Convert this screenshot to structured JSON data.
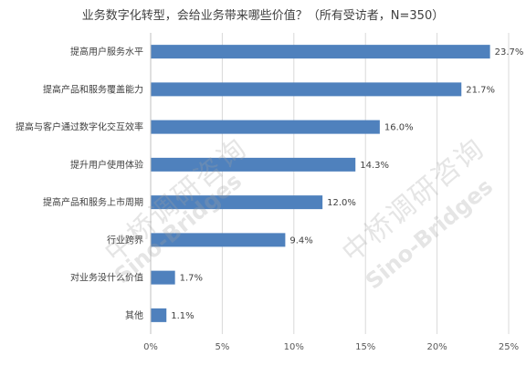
{
  "chart_data": {
    "type": "bar",
    "orientation": "horizontal",
    "title": "业务数字化转型，会给业务带来哪些价值？（所有受访者，N=350）",
    "categories": [
      "提高用户服务水平",
      "提高产品和服务覆盖能力",
      "提高与客户通过数字化交互效率",
      "提升用户使用体验",
      "提高产品和服务上市周期",
      "行业跨界",
      "对业务没什么价值",
      "其他"
    ],
    "values": [
      23.7,
      21.7,
      16.0,
      14.3,
      12.0,
      9.4,
      1.7,
      1.1
    ],
    "value_labels": [
      "23.7%",
      "21.7%",
      "16.0%",
      "14.3%",
      "12.0%",
      "9.4%",
      "1.7%",
      "1.1%"
    ],
    "xlim": [
      0,
      25
    ],
    "xticks": [
      "0%",
      "5%",
      "10%",
      "15%",
      "20%",
      "25%"
    ],
    "xlabel": "",
    "ylabel": "",
    "grid": true,
    "bar_color": "#4F81BD"
  },
  "watermarks": [
    {
      "cn": "中桥调研咨询",
      "en": "Sino-Bridges"
    },
    {
      "cn": "中桥调研咨询",
      "en": "Sino-Bridges"
    }
  ]
}
